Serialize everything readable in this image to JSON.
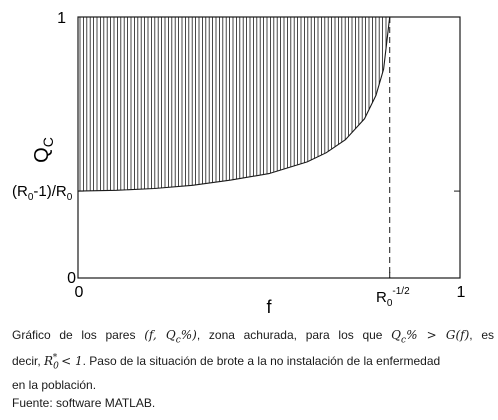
{
  "chart_data": {
    "type": "area",
    "xlabel": "f",
    "ylabel": "Q",
    "ylabel_sub": "C",
    "xlim": [
      0,
      1
    ],
    "ylim": [
      0,
      1
    ],
    "x_ticks": [
      {
        "value": 0,
        "label": "0"
      },
      {
        "value": 0.816,
        "label": "R",
        "sub": "0",
        "sup": "-1/2"
      },
      {
        "value": 1,
        "label": "1"
      }
    ],
    "y_ticks": [
      {
        "value": 0,
        "label": "0"
      },
      {
        "value": 0.333,
        "label": "(R",
        "sub": "0",
        "rest": "-1)/R",
        "sub2": "0"
      },
      {
        "value": 1,
        "label": "1"
      }
    ],
    "curve": {
      "name": "G(f)",
      "y0": 0.333,
      "x": [
        0,
        0.1,
        0.2,
        0.3,
        0.4,
        0.5,
        0.6,
        0.65,
        0.7,
        0.75,
        0.78,
        0.8,
        0.816
      ],
      "y": [
        0.333,
        0.336,
        0.343,
        0.355,
        0.375,
        0.4,
        0.445,
        0.48,
        0.53,
        0.61,
        0.7,
        0.8,
        1.0
      ]
    },
    "shaded_region": "Q_c above G(f), hatched with vertical lines",
    "vertical_dashed_line_x": 0.816,
    "colors": {
      "axis": "#1a1a1a",
      "hatch": "#1a1a1a",
      "background": "#ffffff"
    }
  },
  "caption": {
    "l1_a": "Gráfico de los pares ",
    "l1_m1": "(f, Q",
    "l1_m1_sub": "c",
    "l1_m1_end": "%)",
    "l1_b": ", zona achurada, para los que ",
    "l1_m2": "Q",
    "l1_m2_sub": "c",
    "l1_m2_end": "% > G(f)",
    "l1_c": ", es",
    "l2_a": "decir, ",
    "l2_m": "R",
    "l2_m_sub": "0",
    "l2_m_sup": "*",
    "l2_m_end": " < 1",
    "l2_b": ". Paso de la situación de brote a la no instalación de la enfermedad",
    "l3": "en la población.",
    "l4": "Fuente: software MATLAB."
  }
}
